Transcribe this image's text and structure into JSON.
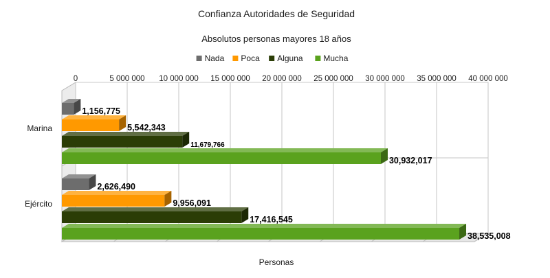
{
  "chart_data": {
    "type": "bar",
    "orientation": "horizontal",
    "title": "Confianza Autoridades de Seguridad",
    "subtitle": "Absolutos personas mayores 18 años",
    "xlabel": "Personas",
    "ylabel": "",
    "xlim": [
      0,
      40000000
    ],
    "x_ticks": [
      0,
      5000000,
      10000000,
      15000000,
      20000000,
      25000000,
      30000000,
      35000000,
      40000000
    ],
    "x_tick_labels": [
      "0",
      "5 000 000",
      "10 000 000",
      "15 000 000",
      "20 000 000",
      "25 000 000",
      "30 000 000",
      "35 000 000",
      "40 000 000"
    ],
    "x_axis_position": "top",
    "grid": true,
    "legend_position": "top",
    "categories": [
      "Marina",
      "Ejército"
    ],
    "series": [
      {
        "name": "Nada",
        "color": "#6d6d6d",
        "values": [
          1156775,
          2626490
        ],
        "labels": [
          "1,156,775",
          "2,626,490"
        ]
      },
      {
        "name": "Poca",
        "color": "#ff9900",
        "values": [
          5542343,
          9956091
        ],
        "labels": [
          "5,542,343",
          "9,956,091"
        ]
      },
      {
        "name": "Alguna",
        "color": "#2b3d06",
        "values": [
          11679766,
          17416545
        ],
        "labels": [
          "11,679,766",
          "17,416,545"
        ]
      },
      {
        "name": "Mucha",
        "color": "#5aa21e",
        "values": [
          30932017,
          38535008
        ],
        "labels": [
          "30,932,017",
          "38,535,008"
        ]
      }
    ]
  }
}
